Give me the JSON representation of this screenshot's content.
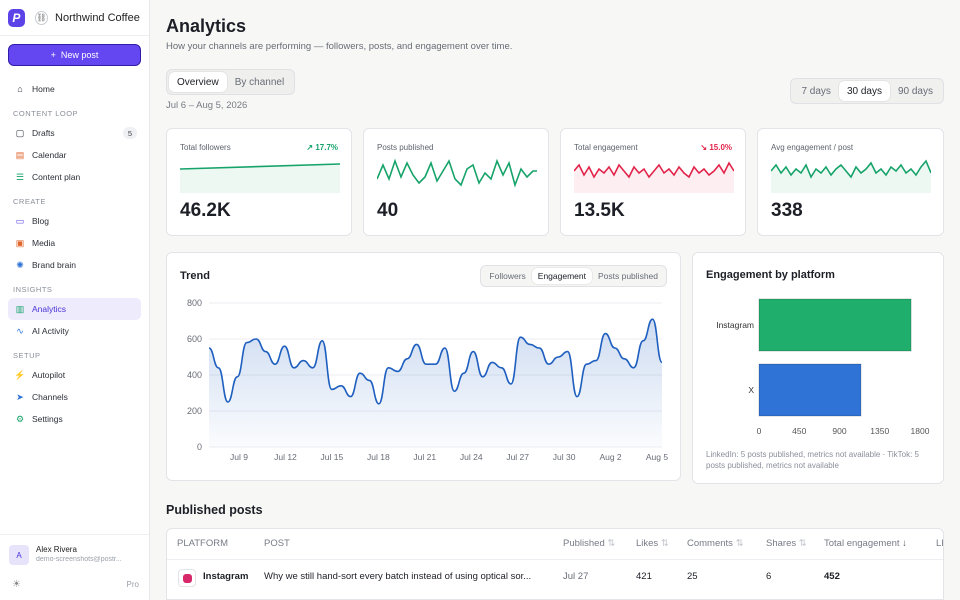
{
  "workspace": {
    "name": "Northwind Coffee Co",
    "logo": "P"
  },
  "sidebar": {
    "new_post": "New post",
    "home": "Home",
    "groups": [
      "CONTENT LOOP",
      "CREATE",
      "INSIGHTS",
      "SETUP"
    ],
    "items": {
      "drafts": "Drafts",
      "drafts_count": "5",
      "calendar": "Calendar",
      "content_plan": "Content plan",
      "blog": "Blog",
      "media": "Media",
      "brand_brain": "Brand brain",
      "analytics": "Analytics",
      "ai_activity": "AI Activity",
      "autopilot": "Autopilot",
      "channels": "Channels",
      "settings": "Settings"
    },
    "user": {
      "initial": "A",
      "name": "Alex Rivera",
      "email": "demo-screenshots@postr...",
      "plan": "Pro"
    }
  },
  "header": {
    "title": "Analytics",
    "subtitle": "How your channels are performing — followers, posts, and engagement over time.",
    "date_range": "Jul 6 – Aug 5, 2026"
  },
  "view_tabs": [
    "Overview",
    "By channel"
  ],
  "period_tabs": [
    "7 days",
    "30 days",
    "90 days"
  ],
  "kpis": [
    {
      "label": "Total followers",
      "value": "46.2K",
      "change": "↗ 17.7%",
      "color": "#16a36a"
    },
    {
      "label": "Posts published",
      "value": "40",
      "change": "",
      "color": "#16a36a"
    },
    {
      "label": "Total engagement",
      "value": "13.5K",
      "change": "↘ 15.0%",
      "color": "#e2244b"
    },
    {
      "label": "Avg engagement / post",
      "value": "338",
      "change": "",
      "color": "#16a36a"
    }
  ],
  "trend": {
    "title": "Trend",
    "tabs": [
      "Followers",
      "Engagement",
      "Posts published"
    ]
  },
  "platform": {
    "title": "Engagement by platform",
    "note": "LinkedIn: 5 posts published, metrics not available · TikTok: 5 posts published, metrics not available"
  },
  "chart_data": [
    {
      "type": "line",
      "title": "Trend",
      "series": [
        {
          "name": "Engagement",
          "values": [
            550,
            440,
            250,
            390,
            580,
            600,
            530,
            460,
            560,
            440,
            480,
            440,
            590,
            320,
            340,
            280,
            410,
            370,
            240,
            440,
            420,
            490,
            570,
            460,
            460,
            550,
            310,
            410,
            530,
            390,
            470,
            440,
            350,
            610,
            570,
            550,
            460,
            500,
            530,
            280,
            460,
            480,
            630,
            550,
            490,
            440,
            590,
            710,
            470
          ]
        }
      ],
      "x_tick_labels": [
        "Jul 9",
        "Jul 12",
        "Jul 15",
        "Jul 18",
        "Jul 21",
        "Jul 24",
        "Jul 27",
        "Jul 30",
        "Aug 2",
        "Aug 5"
      ],
      "ylim": [
        0,
        800
      ],
      "yticks": [
        0,
        200,
        400,
        600,
        800
      ],
      "color": "#1f5fbf"
    },
    {
      "type": "bar",
      "title": "Engagement by platform",
      "orientation": "horizontal",
      "categories": [
        "Instagram",
        "X"
      ],
      "values": [
        1700,
        1140
      ],
      "colors": [
        "#1fae6c",
        "#2f73d6"
      ],
      "xlim": [
        0,
        1800
      ],
      "xticks": [
        0,
        450,
        900,
        1350,
        1800
      ]
    }
  ],
  "table": {
    "title": "Published posts",
    "headers": [
      "PLATFORM",
      "POST",
      "Published",
      "Likes",
      "Comments",
      "Shares",
      "Total engagement",
      "LI"
    ],
    "rows": [
      {
        "platform": "Instagram",
        "post": "Why we still hand-sort every batch instead of using optical sor...",
        "published": "Jul 27",
        "likes": "421",
        "comments": "25",
        "shares": "6",
        "total": "452"
      }
    ]
  }
}
